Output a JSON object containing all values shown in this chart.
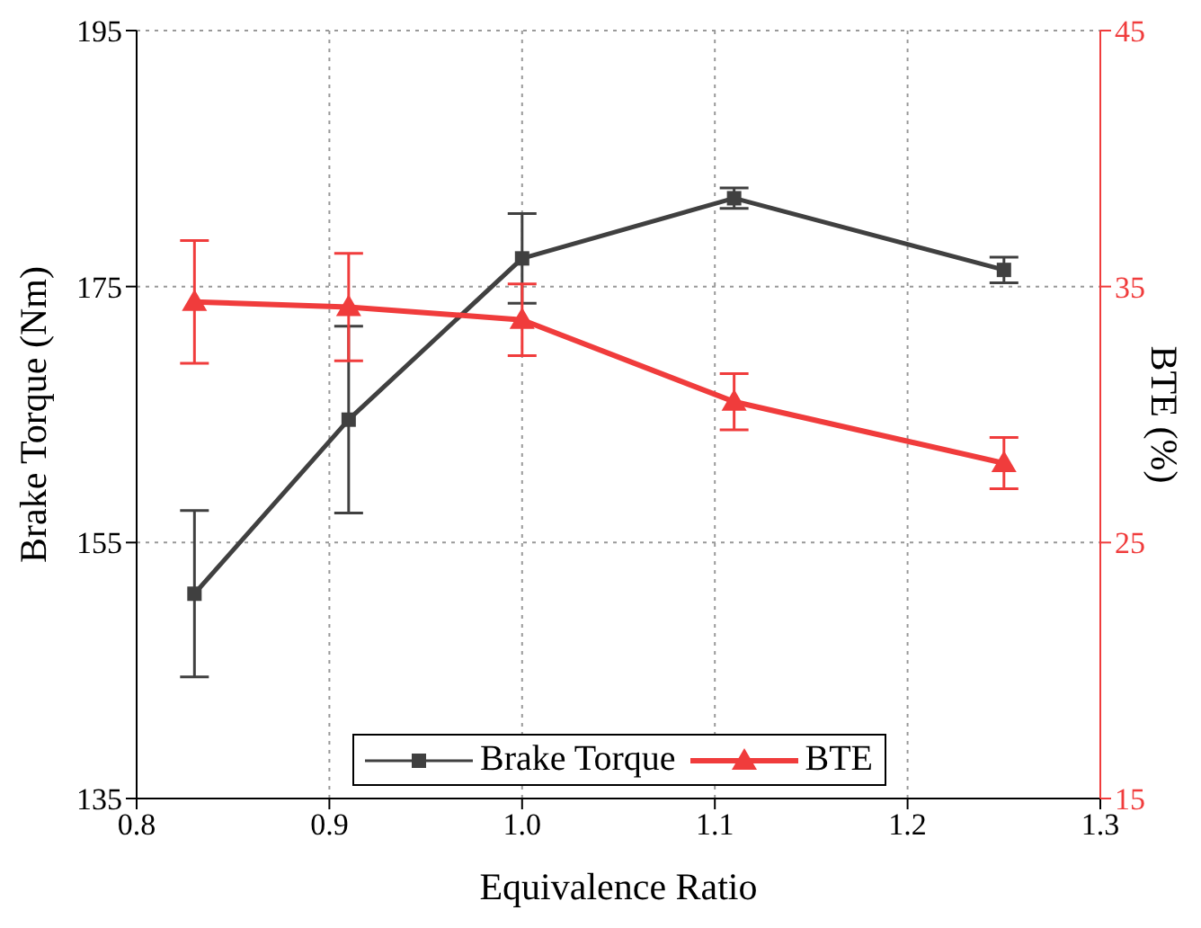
{
  "chart_data": {
    "type": "line",
    "xlabel": "Equivalence Ratio",
    "ylabel": "Brake Torque (Nm)",
    "y2label": "BTE (%)",
    "x": [
      0.83,
      0.91,
      1.0,
      1.11,
      1.25
    ],
    "series": [
      {
        "name": "Brake Torque",
        "color": "#404040",
        "marker": "square",
        "values": [
          151,
          164.6,
          177.2,
          181.9,
          176.3
        ],
        "errors": [
          6.5,
          7.3,
          3.5,
          0.8,
          1
        ]
      },
      {
        "name": "BTE",
        "color": "#f03c3c",
        "marker": "triangle",
        "axis": "y2",
        "values": [
          34.4,
          34.2,
          33.7,
          30.5,
          28.1
        ],
        "errors": [
          2.4,
          2.1,
          1.4,
          1.1,
          1
        ]
      }
    ],
    "xlim": [
      0.8,
      1.3
    ],
    "xticks": [
      {
        "value": 0.8,
        "label": "0.8"
      },
      0.9,
      {
        "value": 1.0,
        "label": "1.0"
      },
      1.1,
      1.2,
      1.3
    ],
    "ylim": [
      135,
      195
    ],
    "yticks": [
      135,
      155,
      175,
      195
    ],
    "y2lim": [
      15,
      45
    ],
    "y2ticks": [
      15,
      25,
      35,
      45
    ],
    "grid": true,
    "legend": "bottom"
  }
}
